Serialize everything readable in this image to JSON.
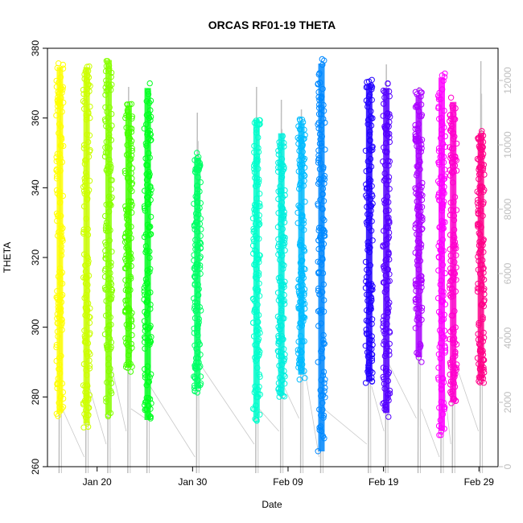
{
  "chart_data": {
    "type": "scatter",
    "title": "ORCAS RF01-19 THETA",
    "xlabel": "Date",
    "ylabel": "THETA",
    "x_ticks": [
      "Jan 20",
      "Jan 30",
      "Feb 09",
      "Feb 19",
      "Feb 29"
    ],
    "x_tick_days": [
      20,
      30,
      40,
      50,
      60
    ],
    "xlim_days": [
      14.8,
      62.0
    ],
    "ylim": [
      260,
      380
    ],
    "y_ticks": [
      260,
      280,
      300,
      320,
      340,
      360,
      380
    ],
    "y2_ticks": [
      0,
      2000,
      4000,
      6000,
      8000,
      10000,
      12000
    ],
    "y2lim": [
      0,
      13000
    ],
    "y2_color": "#bebebe",
    "grid": false,
    "legend": "none",
    "flights": [
      {
        "day": 16.1,
        "min": 274,
        "max": 376,
        "color": "#ffff00",
        "alt_max": 12400
      },
      {
        "day": 18.9,
        "min": 271,
        "max": 376,
        "color": "#ccff00",
        "alt_max": 12400
      },
      {
        "day": 21.2,
        "min": 274,
        "max": 378,
        "color": "#88ff00",
        "alt_max": 12000
      },
      {
        "day": 23.3,
        "min": 287,
        "max": 365,
        "color": "#44ff00",
        "alt_max": 11800
      },
      {
        "day": 25.3,
        "min": 272,
        "max": 370,
        "color": "#00ff20",
        "alt_max": 11400
      },
      {
        "day": 30.5,
        "min": 281,
        "max": 350,
        "color": "#00ff66",
        "alt_max": 11000
      },
      {
        "day": 36.7,
        "min": 273,
        "max": 361,
        "color": "#00ffcc",
        "alt_max": 11800
      },
      {
        "day": 39.3,
        "min": 279,
        "max": 357,
        "color": "#00eedd",
        "alt_max": 11400
      },
      {
        "day": 41.4,
        "min": 285,
        "max": 360,
        "color": "#00bbff",
        "alt_max": 11100
      },
      {
        "day": 43.5,
        "min": 263,
        "max": 377,
        "color": "#0088ff",
        "alt_max": 11400
      },
      {
        "day": 48.5,
        "min": 283,
        "max": 371,
        "color": "#2200ff",
        "alt_max": 11500
      },
      {
        "day": 50.3,
        "min": 274,
        "max": 370,
        "color": "#5500ff",
        "alt_max": 12500
      },
      {
        "day": 53.7,
        "min": 290,
        "max": 368,
        "color": "#aa00ff",
        "alt_max": 11800
      },
      {
        "day": 56.1,
        "min": 269,
        "max": 373,
        "color": "#ff00ff",
        "alt_max": 11400
      },
      {
        "day": 57.3,
        "min": 277,
        "max": 366,
        "color": "#ff00cc",
        "alt_max": 10900
      },
      {
        "day": 60.2,
        "min": 284,
        "max": 357,
        "color": "#ff0088",
        "alt_max": 12600
      }
    ]
  }
}
